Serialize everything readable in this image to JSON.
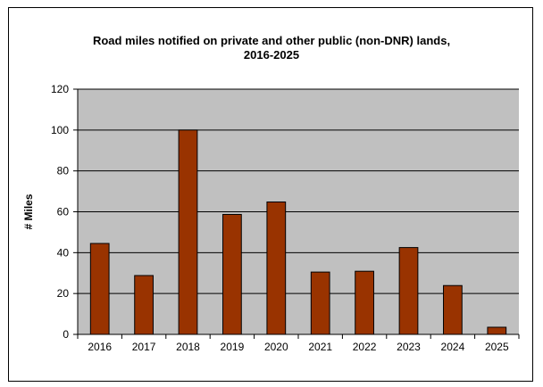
{
  "chart_data": {
    "type": "bar",
    "title_line1": "Road miles notified on private and other public (non-DNR) lands,",
    "title_line2": "2016-2025",
    "xlabel": "",
    "ylabel": "# Miles",
    "categories": [
      "2016",
      "2017",
      "2018",
      "2019",
      "2020",
      "2021",
      "2022",
      "2023",
      "2024",
      "2025"
    ],
    "values": [
      44.5,
      28.8,
      100,
      58.7,
      64.8,
      30.5,
      30.9,
      42.5,
      23.9,
      3.5
    ],
    "ylim": [
      0,
      120
    ],
    "yticks": [
      0,
      20,
      40,
      60,
      80,
      100,
      120
    ],
    "grid": true,
    "legend": "none",
    "colors": {
      "bar": "#993300",
      "plot_bg": "#c0c0c0",
      "grid": "#000000"
    }
  }
}
